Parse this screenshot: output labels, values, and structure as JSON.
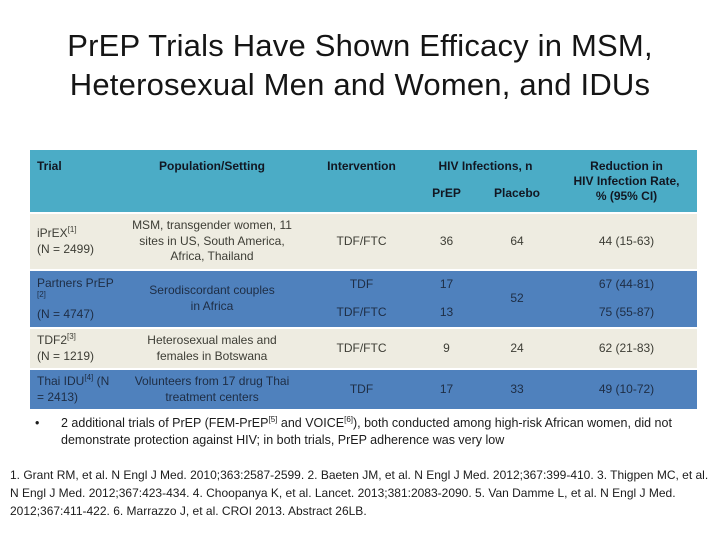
{
  "theme": {
    "header_bg": "#4BACC6",
    "row_blue": "#4F81BD",
    "row_cream": "#EEECE1",
    "header_text": "#121722",
    "blue_text": "#1e2d44",
    "cream_text": "#3d3d35"
  },
  "title": {
    "line1": "PrEP Trials Have Shown Efficacy in MSM,",
    "line2": "Heterosexual Men and Women, and IDUs"
  },
  "table": {
    "headers": {
      "trial": "Trial",
      "population": "Population/Setting",
      "intervention": "Intervention",
      "hiv_infections": "HIV Infections, n",
      "prep": "PrEP",
      "placebo": "Placebo",
      "reduction": "Reduction in\nHIV Infection Rate,\n% (95% CI)"
    },
    "rows": [
      {
        "trial": "iPrEX",
        "ref": "[1]",
        "n": "(N = 2499)",
        "population": "MSM, transgender women, 11\nsites in US, South America,\nAfrica, Thailand",
        "intervention": "TDF/FTC",
        "prep": "36",
        "placebo": "64",
        "reduction": "44 (15-63)"
      },
      {
        "trial": "Partners PrEP",
        "ref": "[2]",
        "n": "(N = 4747)",
        "population": "Serodiscordant couples\nin Africa",
        "placebo": "52",
        "sub": [
          {
            "intervention": "TDF",
            "prep": "17",
            "reduction": "67 (44-81)"
          },
          {
            "intervention": "TDF/FTC",
            "prep": "13",
            "reduction": "75 (55-87)"
          }
        ]
      },
      {
        "trial": "TDF2",
        "ref": "[3]",
        "n": "(N = 1219)",
        "population": "Heterosexual males and\nfemales in Botswana",
        "intervention": "TDF/FTC",
        "prep": "9",
        "placebo": "24",
        "reduction": "62 (21-83)"
      },
      {
        "trial": "Thai IDU",
        "ref": "[4]",
        "n": "(N = 2413)",
        "population": "Volunteers from 17 drug Thai\ntreatment centers",
        "intervention": "TDF",
        "prep": "17",
        "placebo": "33",
        "reduction": "49 (10-72)"
      }
    ]
  },
  "bullet": {
    "marker": "•",
    "part1": "2 additional trials of PrEP (FEM-PrEP",
    "sup1": "[5]",
    "part2": " and VOICE",
    "sup2": "[6]",
    "part3": "), both conducted among high-risk African women, did not demonstrate protection against HIV; in both trials, PrEP adherence was very low"
  },
  "references": "1. Grant RM, et al. N Engl J Med. 2010;363:2587-2599. 2. Baeten JM, et al. N Engl J Med. 2012;367:399-410. 3. Thigpen MC, et al. N Engl J Med. 2012;367:423-434. 4. Choopanya K, et al. Lancet. 2013;381:2083-2090. 5. Van Damme L, et al. N Engl J Med. 2012;367:411-422. 6. Marrazzo J, et al. CROI 2013. Abstract 26LB."
}
